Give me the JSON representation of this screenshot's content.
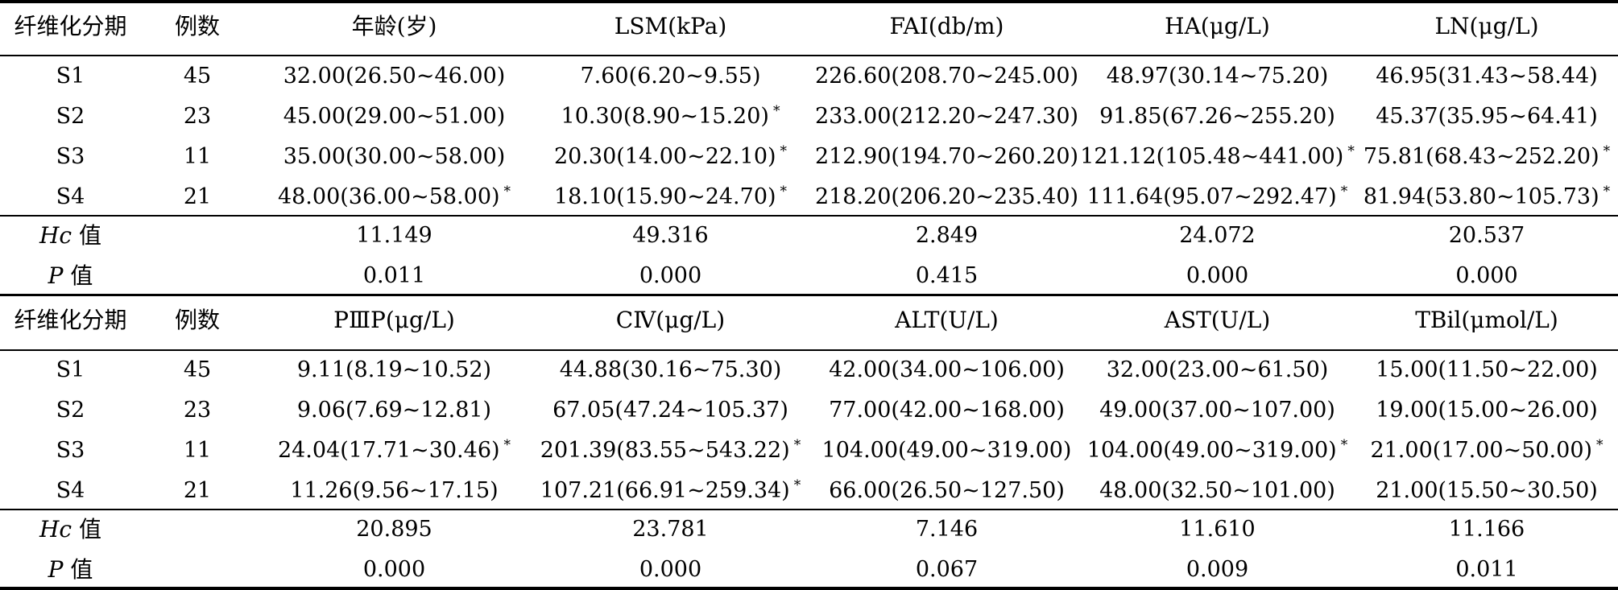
{
  "col_label": "纤维化分期",
  "n_label": "例数",
  "panels": [
    {
      "headers": [
        "年龄(岁)",
        "LSM(kPa)",
        "FAI(db/m)",
        "HA(μg/L)",
        "LN(μg/L)"
      ],
      "rows": [
        {
          "stage": "S1",
          "n": "45",
          "v": [
            "32.00(26.50~46.00)",
            "7.60(6.20~9.55)",
            "226.60(208.70~245.00)",
            "48.97(30.14~75.20)",
            "46.95(31.43~58.44)"
          ],
          "m": [
            "",
            "",
            "",
            "",
            ""
          ]
        },
        {
          "stage": "S2",
          "n": "23",
          "v": [
            "45.00(29.00~51.00)",
            "10.30(8.90~15.20)",
            "233.00(212.20~247.30)",
            "91.85(67.26~255.20)",
            "45.37(35.95~64.41)"
          ],
          "m": [
            "",
            "*",
            "",
            "",
            ""
          ]
        },
        {
          "stage": "S3",
          "n": "11",
          "v": [
            "35.00(30.00~58.00)",
            "20.30(14.00~22.10)",
            "212.90(194.70~260.20)",
            "121.12(105.48~441.00)",
            "75.81(68.43~252.20)"
          ],
          "m": [
            "",
            "*",
            "",
            "*",
            "*"
          ]
        },
        {
          "stage": "S4",
          "n": "21",
          "v": [
            "48.00(36.00~58.00)",
            "18.10(15.90~24.70)",
            "218.20(206.20~235.40)",
            "111.64(95.07~292.47)",
            "81.94(53.80~105.73)"
          ],
          "m": [
            "*",
            "*",
            "",
            "*",
            "*"
          ]
        }
      ],
      "hc_label": "Hc",
      "hc_suffix": "值",
      "hc": [
        "11.149",
        "49.316",
        "2.849",
        "24.072",
        "20.537"
      ],
      "p_label": "P",
      "p_suffix": "值",
      "p": [
        "0.011",
        "0.000",
        "0.415",
        "0.000",
        "0.000"
      ]
    },
    {
      "headers": [
        "PⅢP(μg/L)",
        "CⅣ(μg/L)",
        "ALT(U/L)",
        "AST(U/L)",
        "TBil(μmol/L)"
      ],
      "rows": [
        {
          "stage": "S1",
          "n": "45",
          "v": [
            "9.11(8.19~10.52)",
            "44.88(30.16~75.30)",
            "42.00(34.00~106.00)",
            "32.00(23.00~61.50)",
            "15.00(11.50~22.00)"
          ],
          "m": [
            "",
            "",
            "",
            "",
            ""
          ]
        },
        {
          "stage": "S2",
          "n": "23",
          "v": [
            "9.06(7.69~12.81)",
            "67.05(47.24~105.37)",
            "77.00(42.00~168.00)",
            "49.00(37.00~107.00)",
            "19.00(15.00~26.00)"
          ],
          "m": [
            "",
            "",
            "",
            "",
            ""
          ]
        },
        {
          "stage": "S3",
          "n": "11",
          "v": [
            "24.04(17.71~30.46)",
            "201.39(83.55~543.22)",
            "104.00(49.00~319.00)",
            "104.00(49.00~319.00)",
            "21.00(17.00~50.00)"
          ],
          "m": [
            "*",
            "*",
            "",
            "*",
            "*"
          ]
        },
        {
          "stage": "S4",
          "n": "21",
          "v": [
            "11.26(9.56~17.15)",
            "107.21(66.91~259.34)",
            "66.00(26.50~127.50)",
            "48.00(32.50~101.00)",
            "21.00(15.50~30.50)"
          ],
          "m": [
            "",
            "*",
            "",
            "",
            ""
          ]
        }
      ],
      "hc_label": "Hc",
      "hc_suffix": "值",
      "hc": [
        "20.895",
        "23.781",
        "7.146",
        "11.610",
        "11.166"
      ],
      "p_label": "P",
      "p_suffix": "值",
      "p": [
        "0.000",
        "0.000",
        "0.067",
        "0.009",
        "0.011"
      ]
    }
  ]
}
